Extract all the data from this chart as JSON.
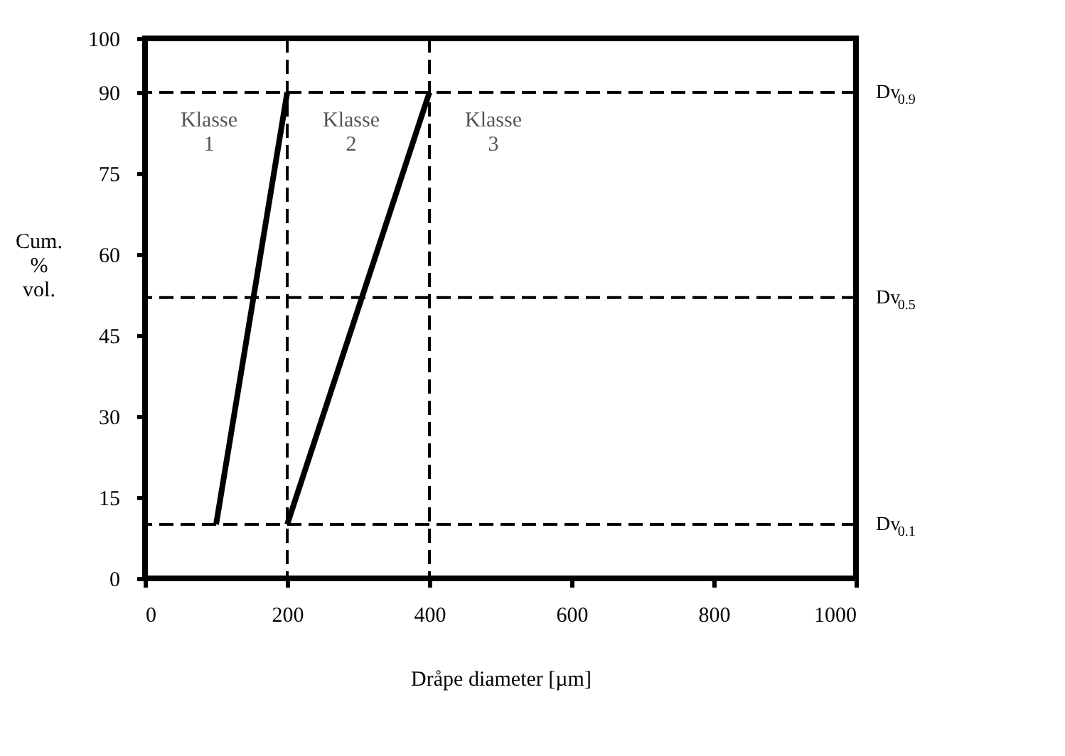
{
  "chart_data": {
    "type": "line",
    "xlabel": "Dråpe diameter [µm]",
    "ylabel": "Cum.\n%\nvol.",
    "xlim": [
      0,
      1000
    ],
    "xticks": [
      0,
      200,
      400,
      600,
      800,
      1000
    ],
    "ylim": [
      0,
      100
    ],
    "yticks": [
      0,
      15,
      30,
      45,
      60,
      75,
      90,
      100
    ],
    "grid": false,
    "marker": "none",
    "line_style": "solid",
    "series": [
      {
        "color": "#000000",
        "x": [
          100,
          200
        ],
        "values": [
          10,
          90
        ]
      },
      {
        "color": "#000000",
        "x": [
          200,
          400
        ],
        "values": [
          10,
          90
        ]
      }
    ],
    "ref_lines": [
      {
        "axis": "y",
        "value": 90,
        "label": "Dv$_{0.9}$",
        "line_style": "dashed",
        "color": "#000000"
      },
      {
        "axis": "y",
        "value": 52,
        "label": "Dv$_{0.5}$",
        "line_style": "dashed",
        "color": "#000000"
      },
      {
        "axis": "y",
        "value": 10,
        "label": "Dv$_{0.1}$",
        "line_style": "dashed",
        "color": "#000000"
      },
      {
        "axis": "x",
        "value": 200,
        "label": null,
        "line_style": "dashed",
        "color": "#000000"
      },
      {
        "axis": "x",
        "value": 400,
        "label": null,
        "line_style": "dashed",
        "color": "#000000"
      }
    ],
    "annotations": [
      "Klasse\n1",
      "Klasse\n2",
      "Klasse\n3"
    ]
  }
}
